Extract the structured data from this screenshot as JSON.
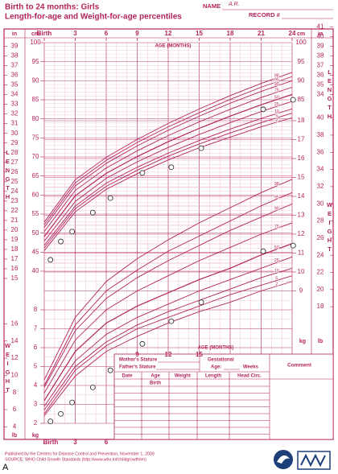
{
  "chart_data": {
    "type": "line",
    "title": "Birth to 24 months: Girls",
    "subtitle": "Length-for-age and Weight-for-age percentiles",
    "xlabel": "AGE (MONTHS)",
    "ylabel": "LENGTH",
    "y2label": "WEIGHT",
    "y_unit": "cm",
    "y_in_unit": "in",
    "y2_unit": "kg",
    "y2_lb_unit": "lb",
    "xlim": [
      0,
      24
    ],
    "xticks": [
      {
        "value": 0,
        "label": "Birth"
      },
      3,
      6,
      9,
      12,
      15,
      18,
      21,
      24
    ],
    "x_grid": [
      0,
      1,
      2,
      3,
      4,
      5,
      6,
      7,
      8,
      9,
      10,
      11,
      12,
      13,
      14,
      15,
      16,
      17,
      18,
      19,
      20,
      21,
      22,
      23,
      24
    ],
    "ylim": [
      40,
      100
    ],
    "yticks": [
      40,
      45,
      50,
      55,
      60,
      65,
      70,
      75,
      80,
      85,
      90,
      95,
      100
    ],
    "y_grid": [
      40,
      41,
      42,
      43,
      44,
      45,
      46,
      47,
      48,
      49,
      50,
      51,
      52,
      53,
      54,
      55,
      56,
      57,
      58,
      59,
      60,
      61,
      62,
      63,
      64,
      65,
      66,
      67,
      68,
      69,
      70,
      71,
      72,
      73,
      74,
      75,
      76,
      77,
      78,
      79,
      80,
      81,
      82,
      83,
      84,
      85,
      86,
      87,
      88,
      89,
      90,
      91,
      92,
      93,
      94,
      95,
      96,
      97,
      98,
      99,
      100
    ],
    "y_in_ticks": [
      15,
      16,
      17,
      18,
      19,
      20,
      21,
      22,
      23,
      24,
      25,
      26,
      27,
      28,
      29,
      30,
      31,
      32,
      33,
      34,
      35,
      36,
      37,
      38,
      39,
      40,
      41
    ],
    "y2lim": [
      2,
      18
    ],
    "y2ticks": [
      2,
      3,
      4,
      5,
      6,
      7,
      8,
      9,
      10,
      11,
      12,
      13,
      14,
      15,
      16,
      17,
      18
    ],
    "y2_grid": [
      2,
      2.5,
      3,
      3.5,
      4,
      4.5,
      5,
      5.5,
      6,
      6.5,
      7,
      7.5,
      8,
      8.5,
      9,
      9.5,
      10,
      10.5,
      11,
      11.5,
      12,
      12.5,
      13,
      13.5,
      14,
      14.5,
      15,
      15.5,
      16,
      16.5,
      17,
      17.5,
      18
    ],
    "y2_lb_ticks": [
      4,
      6,
      8,
      10,
      12,
      14,
      16,
      18,
      20,
      22,
      24,
      26,
      28,
      30,
      32,
      34,
      36,
      38,
      40
    ],
    "grid": true,
    "color": "#b3245c",
    "grid_color": "#eeb3c8",
    "x": [
      0,
      3,
      6,
      9,
      12,
      15,
      18,
      21,
      24
    ],
    "series": [
      {
        "name": "98",
        "values": [
          52.9,
          64.0,
          69.9,
          74.6,
          78.8,
          82.6,
          86.1,
          89.3,
          92.2
        ]
      },
      {
        "name": "95",
        "values": [
          52.2,
          63.2,
          69.1,
          73.8,
          77.9,
          81.6,
          85.1,
          88.3,
          91.1
        ]
      },
      {
        "name": "90",
        "values": [
          51.5,
          62.4,
          68.3,
          72.9,
          77.0,
          80.7,
          84.1,
          87.2,
          90.0
        ]
      },
      {
        "name": "75",
        "values": [
          50.4,
          61.2,
          67.1,
          71.6,
          75.6,
          79.2,
          82.5,
          85.6,
          88.3
        ]
      },
      {
        "name": "50",
        "values": [
          49.1,
          59.8,
          65.7,
          70.1,
          74.0,
          77.5,
          80.7,
          83.7,
          86.4
        ]
      },
      {
        "name": "25",
        "values": [
          47.9,
          58.3,
          64.4,
          68.7,
          72.5,
          75.9,
          79.0,
          81.9,
          84.6
        ]
      },
      {
        "name": "10",
        "values": [
          46.8,
          57.1,
          63.1,
          67.3,
          71.0,
          74.3,
          77.3,
          80.1,
          82.6
        ]
      },
      {
        "name": "5",
        "values": [
          46.1,
          56.4,
          62.3,
          66.5,
          70.2,
          73.4,
          76.3,
          79.0,
          81.5
        ]
      },
      {
        "name": "2",
        "values": [
          45.4,
          55.6,
          61.5,
          65.6,
          69.2,
          72.4,
          75.2,
          77.9,
          80.3
        ]
      },
      {
        "name": "98",
        "axis": "y2",
        "values": [
          4.3,
          7.6,
          9.5,
          10.7,
          11.7,
          12.6,
          13.4,
          14.2,
          14.9
        ]
      },
      {
        "name": "95",
        "axis": "y2",
        "values": [
          4.0,
          7.2,
          9.0,
          10.1,
          11.1,
          11.9,
          12.7,
          13.5,
          14.2
        ]
      },
      {
        "name": "90",
        "axis": "y2",
        "values": [
          3.9,
          6.9,
          8.6,
          9.7,
          10.6,
          11.4,
          12.2,
          12.9,
          13.6
        ]
      },
      {
        "name": "75",
        "axis": "y2",
        "values": [
          3.6,
          6.4,
          8.0,
          9.0,
          9.8,
          10.6,
          11.3,
          12.0,
          12.6
        ]
      },
      {
        "name": "50",
        "axis": "y2",
        "values": [
          3.2,
          5.8,
          7.3,
          8.2,
          8.9,
          9.6,
          10.2,
          10.9,
          11.5
        ]
      },
      {
        "name": "25",
        "axis": "y2",
        "values": [
          2.9,
          5.3,
          6.7,
          7.6,
          8.3,
          9.0,
          9.6,
          10.2,
          10.8
        ]
      },
      {
        "name": "10",
        "axis": "y2",
        "values": [
          2.7,
          5.0,
          6.3,
          7.2,
          7.9,
          8.5,
          9.1,
          9.7,
          10.2
        ]
      },
      {
        "name": "5",
        "axis": "y2",
        "values": [
          2.5,
          4.8,
          6.1,
          7.0,
          7.6,
          8.2,
          8.8,
          9.3,
          9.8
        ]
      },
      {
        "name": "2",
        "axis": "y2",
        "values": [
          2.4,
          4.5,
          5.8,
          6.6,
          7.3,
          7.9,
          8.4,
          9.0,
          9.5
        ]
      }
    ],
    "points": [
      {
        "x": [
          0.6,
          1.6,
          2.7,
          4.7,
          6.4,
          9.5,
          12.3,
          15.2,
          21.2,
          24.1
        ],
        "values": [
          43.0,
          47.8,
          50.4,
          55.4,
          59.2,
          65.8,
          67.3,
          72.3,
          82.5,
          85.0
        ]
      },
      {
        "axis": "y2",
        "x": [
          0.6,
          1.6,
          2.7,
          4.7,
          6.4,
          9.5,
          12.3,
          15.2,
          21.2,
          24.1
        ],
        "values": [
          2.1,
          2.5,
          3.1,
          3.9,
          4.8,
          6.2,
          7.4,
          8.4,
          11.1,
          11.4
        ]
      }
    ]
  },
  "patient": {
    "name_label": "NAME",
    "name": "A.R.",
    "record_label": "RECORD #"
  },
  "form": {
    "mother_stature": "Mother's Stature",
    "father_stature": "Father's Stature",
    "gestational": "Gestational",
    "age": "Age:",
    "weeks": "Weeks",
    "comment": "Comment",
    "columns": [
      "Date",
      "Age",
      "Weight",
      "Length",
      "Head Circ."
    ],
    "birth": "Birth"
  },
  "footer": {
    "published": "Published by the Centers for Disease Control and Prevention, November 1, 2009",
    "source": "SOURCE: WHO Child Growth Standards (http://www.who.int/childgrowth/en)"
  },
  "figure_label": "A"
}
